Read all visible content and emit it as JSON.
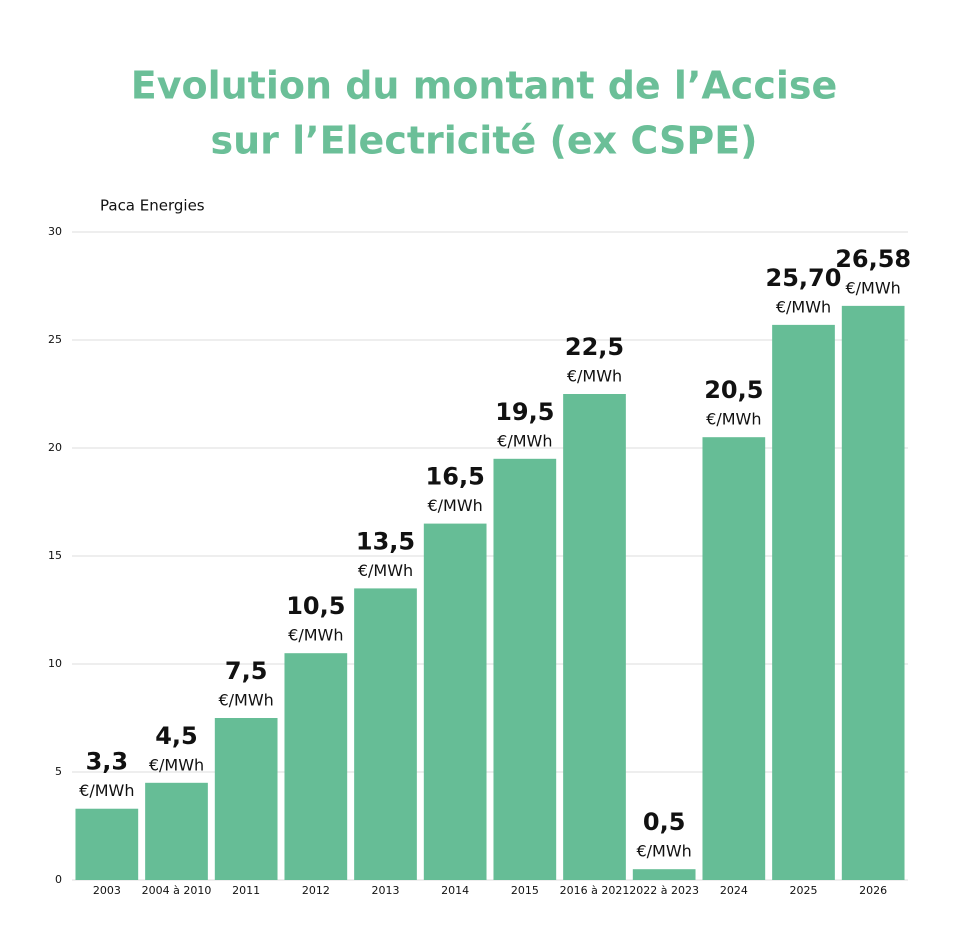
{
  "chart_data": {
    "type": "bar",
    "title": [
      "Evolution du montant de l’Accise",
      "sur l’Electricité (ex CSPE)"
    ],
    "subtitle": "Paca Energies",
    "categories": [
      "2003",
      "2004 à 2010",
      "2011",
      "2012",
      "2013",
      "2014",
      "2015",
      "2016 à 2021",
      "2022 à 2023",
      "2024",
      "2025",
      "2026"
    ],
    "values": [
      3.3,
      4.5,
      7.5,
      10.5,
      13.5,
      16.5,
      19.5,
      22.5,
      0.5,
      20.5,
      25.7,
      26.58
    ],
    "value_labels": [
      "3,3",
      "4,5",
      "7,5",
      "10,5",
      "13,5",
      "16,5",
      "19,5",
      "22,5",
      "0,5",
      "20,5",
      "25,70",
      "26,58"
    ],
    "value_unit": "€/MWh",
    "color": "#66bd96",
    "ylim": [
      0,
      30
    ],
    "yticks": [
      0,
      5,
      10,
      15,
      20,
      25,
      30
    ],
    "grid": true
  }
}
